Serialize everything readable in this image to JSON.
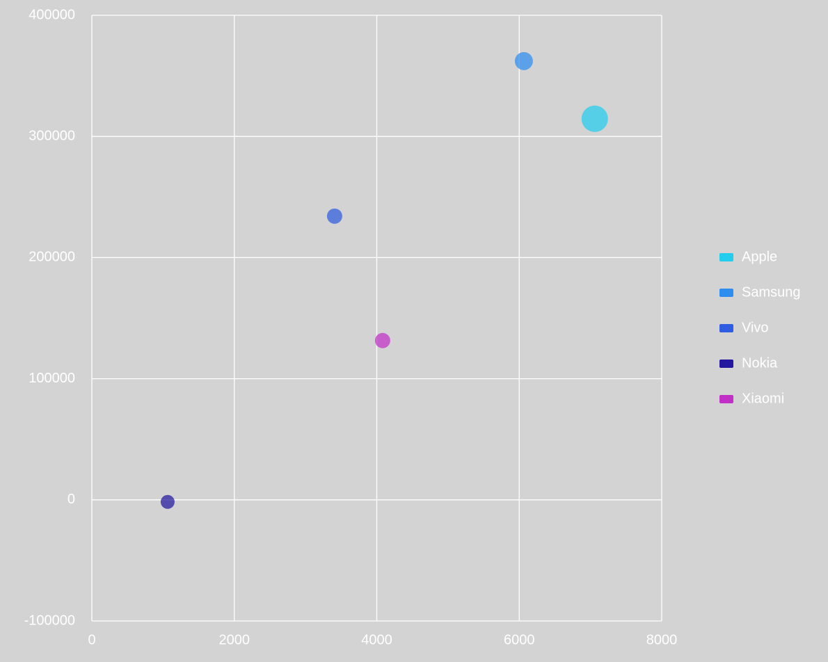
{
  "chart_data": {
    "type": "bubble",
    "xlim": [
      0,
      8000
    ],
    "xticks": [
      0,
      2000,
      4000,
      6000,
      8000
    ],
    "ylim": [
      -100000,
      400000
    ],
    "yticks": [
      -100000,
      0,
      100000,
      200000,
      300000,
      400000
    ],
    "grid": true,
    "legend": "right",
    "series": [
      {
        "name": "Apple",
        "color": "#22cdee",
        "x": [
          7060
        ],
        "values": [
          314600
        ],
        "sizes": [
          19
        ]
      },
      {
        "name": "Samsung",
        "color": "#2e8ef0",
        "x": [
          6065
        ],
        "values": [
          362200
        ],
        "sizes": [
          13
        ]
      },
      {
        "name": "Vivo",
        "color": "#2f5ce0",
        "x": [
          3408
        ],
        "values": [
          234200
        ],
        "sizes": [
          11
        ]
      },
      {
        "name": "Nokia",
        "color": "#22179e",
        "x": [
          1064
        ],
        "values": [
          -1700
        ],
        "sizes": [
          10
        ]
      },
      {
        "name": "Xiaomi",
        "color": "#c12fc6",
        "x": [
          4082
        ],
        "values": [
          131500
        ],
        "sizes": [
          11
        ]
      }
    ]
  }
}
